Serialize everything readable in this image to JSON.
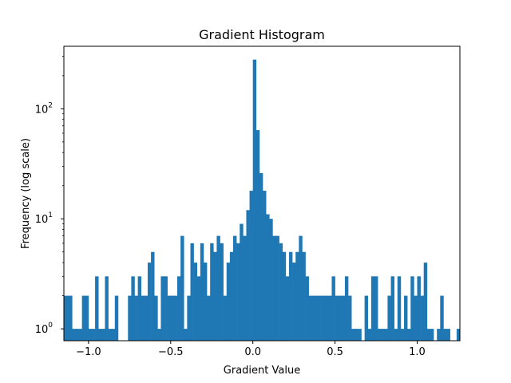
{
  "chart_data": {
    "type": "bar",
    "title": "Gradient Histogram",
    "xlabel": "Gradient Value",
    "ylabel": "Frequency (log scale)",
    "y_scale": "log",
    "xlim": [
      -1.15,
      1.26
    ],
    "ylim": [
      0.78,
      370
    ],
    "bin_width": 0.02,
    "x_ticks": [
      {
        "value": -1.0,
        "label": "−1.0"
      },
      {
        "value": -0.5,
        "label": "−0.5"
      },
      {
        "value": 0.0,
        "label": "0.0"
      },
      {
        "value": 0.5,
        "label": "0.5"
      },
      {
        "value": 1.0,
        "label": "1.0"
      }
    ],
    "y_ticks": [
      {
        "value": 1,
        "base": "10",
        "exp": "0"
      },
      {
        "value": 10,
        "base": "10",
        "exp": "1"
      },
      {
        "value": 100,
        "base": "10",
        "exp": "2"
      }
    ],
    "bar_color": "#1f77b4",
    "grid": false,
    "bins": [
      [
        -1.16,
        2
      ],
      [
        -1.14,
        2
      ],
      [
        -1.12,
        2
      ],
      [
        -1.1,
        1
      ],
      [
        -1.08,
        1
      ],
      [
        -1.06,
        1
      ],
      [
        -1.04,
        2
      ],
      [
        -1.02,
        2
      ],
      [
        -1.0,
        1
      ],
      [
        -0.98,
        1
      ],
      [
        -0.96,
        3
      ],
      [
        -0.94,
        1
      ],
      [
        -0.92,
        1
      ],
      [
        -0.9,
        3
      ],
      [
        -0.88,
        1
      ],
      [
        -0.86,
        1
      ],
      [
        -0.84,
        2
      ],
      [
        -0.76,
        2
      ],
      [
        -0.74,
        3
      ],
      [
        -0.72,
        2
      ],
      [
        -0.7,
        3
      ],
      [
        -0.68,
        2
      ],
      [
        -0.66,
        2
      ],
      [
        -0.64,
        4
      ],
      [
        -0.62,
        5
      ],
      [
        -0.6,
        2
      ],
      [
        -0.58,
        1
      ],
      [
        -0.56,
        3
      ],
      [
        -0.54,
        3
      ],
      [
        -0.52,
        2
      ],
      [
        -0.5,
        2
      ],
      [
        -0.48,
        2
      ],
      [
        -0.46,
        3
      ],
      [
        -0.44,
        7
      ],
      [
        -0.42,
        1
      ],
      [
        -0.4,
        2
      ],
      [
        -0.38,
        6
      ],
      [
        -0.36,
        4
      ],
      [
        -0.34,
        3
      ],
      [
        -0.32,
        6
      ],
      [
        -0.3,
        4
      ],
      [
        -0.28,
        2
      ],
      [
        -0.26,
        6
      ],
      [
        -0.24,
        5
      ],
      [
        -0.22,
        7
      ],
      [
        -0.2,
        6
      ],
      [
        -0.18,
        2
      ],
      [
        -0.16,
        4
      ],
      [
        -0.14,
        5
      ],
      [
        -0.12,
        7
      ],
      [
        -0.1,
        6
      ],
      [
        -0.08,
        9
      ],
      [
        -0.06,
        7
      ],
      [
        -0.04,
        12
      ],
      [
        -0.02,
        18
      ],
      [
        0.0,
        280
      ],
      [
        0.02,
        64
      ],
      [
        0.04,
        26
      ],
      [
        0.06,
        18
      ],
      [
        0.08,
        11
      ],
      [
        0.1,
        10
      ],
      [
        0.12,
        7
      ],
      [
        0.14,
        7
      ],
      [
        0.16,
        6
      ],
      [
        0.18,
        5
      ],
      [
        0.2,
        3
      ],
      [
        0.22,
        5
      ],
      [
        0.24,
        4
      ],
      [
        0.26,
        5
      ],
      [
        0.28,
        7
      ],
      [
        0.3,
        5
      ],
      [
        0.32,
        3
      ],
      [
        0.34,
        2
      ],
      [
        0.36,
        2
      ],
      [
        0.38,
        2
      ],
      [
        0.4,
        2
      ],
      [
        0.42,
        2
      ],
      [
        0.44,
        2
      ],
      [
        0.46,
        2
      ],
      [
        0.48,
        3
      ],
      [
        0.5,
        2
      ],
      [
        0.52,
        2
      ],
      [
        0.54,
        2
      ],
      [
        0.56,
        3
      ],
      [
        0.58,
        2
      ],
      [
        0.6,
        1
      ],
      [
        0.62,
        1
      ],
      [
        0.64,
        1
      ],
      [
        0.68,
        2
      ],
      [
        0.7,
        1
      ],
      [
        0.72,
        3
      ],
      [
        0.74,
        3
      ],
      [
        0.76,
        1
      ],
      [
        0.78,
        1
      ],
      [
        0.8,
        1
      ],
      [
        0.82,
        2
      ],
      [
        0.84,
        3
      ],
      [
        0.86,
        1
      ],
      [
        0.88,
        3
      ],
      [
        0.9,
        1
      ],
      [
        0.92,
        2
      ],
      [
        0.94,
        1
      ],
      [
        0.96,
        3
      ],
      [
        0.98,
        2
      ],
      [
        1.0,
        3
      ],
      [
        1.02,
        2
      ],
      [
        1.04,
        4
      ],
      [
        1.06,
        1
      ],
      [
        1.08,
        1
      ],
      [
        1.12,
        1
      ],
      [
        1.14,
        2
      ],
      [
        1.16,
        1
      ],
      [
        1.18,
        1
      ],
      [
        1.24,
        1
      ]
    ]
  }
}
